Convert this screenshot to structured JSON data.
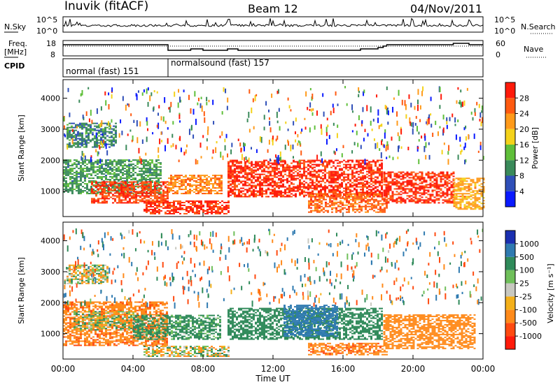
{
  "header": {
    "station": "Inuvik (fitACF)",
    "beam": "Beam 12",
    "date": "04/Nov/2011"
  },
  "panels": {
    "nsky": {
      "label": "N.Sky",
      "right_label": "N.Search",
      "ticks_left": [
        "10^5",
        "10^0"
      ],
      "ticks_right": [
        "10^5",
        "10^0"
      ]
    },
    "freq": {
      "label_line1": "Freq.",
      "label_line2": "[MHz]",
      "right_label": "Nave",
      "ticks_left": [
        "18",
        "8"
      ],
      "ticks_right": [
        "60",
        "0"
      ]
    },
    "cpid": {
      "label": "CPID",
      "segments": [
        {
          "text": "normal (fast) 151",
          "start_hour": 0,
          "end_hour": 6
        },
        {
          "text": "normalsound (fast) 157",
          "start_hour": 6,
          "end_hour": 24
        }
      ]
    }
  },
  "axes": {
    "xlabel": "Time UT",
    "ylabel": "Slant Range [km]",
    "xticks": [
      "00:00",
      "04:00",
      "08:00",
      "12:00",
      "16:00",
      "20:00",
      "00:00"
    ],
    "yticks": [
      "1000",
      "2000",
      "3000",
      "4000"
    ]
  },
  "colorbars": {
    "power": {
      "label": "Power [dB]",
      "ticks": [
        "28",
        "24",
        "20",
        "16",
        "12",
        "8",
        "4"
      ],
      "colors": [
        "#0a1aff",
        "#2f4fb8",
        "#3a8a5a",
        "#5fbf3a",
        "#f4d21a",
        "#ff9a1a",
        "#ff5a10",
        "#ff1a0a"
      ]
    },
    "velocity": {
      "label": "Velocity [m s⁻¹]",
      "ticks": [
        "1000",
        "500",
        "100",
        "25",
        "-25",
        "-100",
        "-500",
        "-1000"
      ],
      "colors": [
        "#1a2fb0",
        "#2f7ab0",
        "#2f8a5a",
        "#6fbf5a",
        "#c8c8c0",
        "#f4b01a",
        "#ff8a1a",
        "#ff4a10",
        "#ff1a0a"
      ]
    }
  },
  "chart_data": [
    {
      "type": "heatmap",
      "title": "Power",
      "xlabel": "Time UT",
      "ylabel": "Slant Range [km]",
      "xlim": [
        0,
        24
      ],
      "ylim": [
        180,
        4600
      ],
      "units": "dB",
      "color_range": [
        0,
        30
      ],
      "regions": [
        {
          "t_start": 0.0,
          "t_end": 5.6,
          "range_low": 900,
          "range_high": 2000,
          "value": 10
        },
        {
          "t_start": 1.6,
          "t_end": 6.0,
          "range_low": 600,
          "range_high": 1300,
          "value": 26
        },
        {
          "t_start": 4.6,
          "t_end": 9.4,
          "range_low": 250,
          "range_high": 700,
          "value": 27
        },
        {
          "t_start": 6.0,
          "t_end": 9.0,
          "range_low": 900,
          "range_high": 1500,
          "value": 22
        },
        {
          "t_start": 9.4,
          "t_end": 18.2,
          "range_low": 800,
          "range_high": 2000,
          "value": 27
        },
        {
          "t_start": 14.0,
          "t_end": 18.5,
          "range_low": 300,
          "range_high": 900,
          "value": 24
        },
        {
          "t_start": 18.3,
          "t_end": 22.3,
          "range_low": 600,
          "range_high": 1600,
          "value": 27
        },
        {
          "t_start": 22.3,
          "t_end": 24.0,
          "range_low": 400,
          "range_high": 1400,
          "value": 20
        },
        {
          "t_start": 0.2,
          "t_end": 3.0,
          "range_low": 2400,
          "range_high": 3200,
          "value": 9
        }
      ]
    },
    {
      "type": "heatmap",
      "title": "Velocity",
      "xlabel": "Time UT",
      "ylabel": "Slant Range [km]",
      "xlim": [
        0,
        24
      ],
      "ylim": [
        180,
        4600
      ],
      "units": "m/s",
      "color_range": [
        -1000,
        1000
      ],
      "regions": [
        {
          "t_start": 0.0,
          "t_end": 6.0,
          "range_low": 600,
          "range_high": 2000,
          "value": -400
        },
        {
          "t_start": 0.6,
          "t_end": 4.0,
          "range_low": 1100,
          "range_high": 1700,
          "value": 0
        },
        {
          "t_start": 4.0,
          "t_end": 9.0,
          "range_low": 800,
          "range_high": 1600,
          "value": 200
        },
        {
          "t_start": 4.6,
          "t_end": 9.4,
          "range_low": 250,
          "range_high": 600,
          "value": 0
        },
        {
          "t_start": 9.4,
          "t_end": 18.2,
          "range_low": 800,
          "range_high": 1800,
          "value": 300
        },
        {
          "t_start": 12.6,
          "t_end": 15.6,
          "range_low": 900,
          "range_high": 1900,
          "value": 800
        },
        {
          "t_start": 14.0,
          "t_end": 18.5,
          "range_low": 300,
          "range_high": 700,
          "value": -400
        },
        {
          "t_start": 18.3,
          "t_end": 23.5,
          "range_low": 500,
          "range_high": 1600,
          "value": -300
        },
        {
          "t_start": 0.2,
          "t_end": 2.6,
          "range_low": 2600,
          "range_high": 3200,
          "value": 0
        }
      ]
    }
  ]
}
